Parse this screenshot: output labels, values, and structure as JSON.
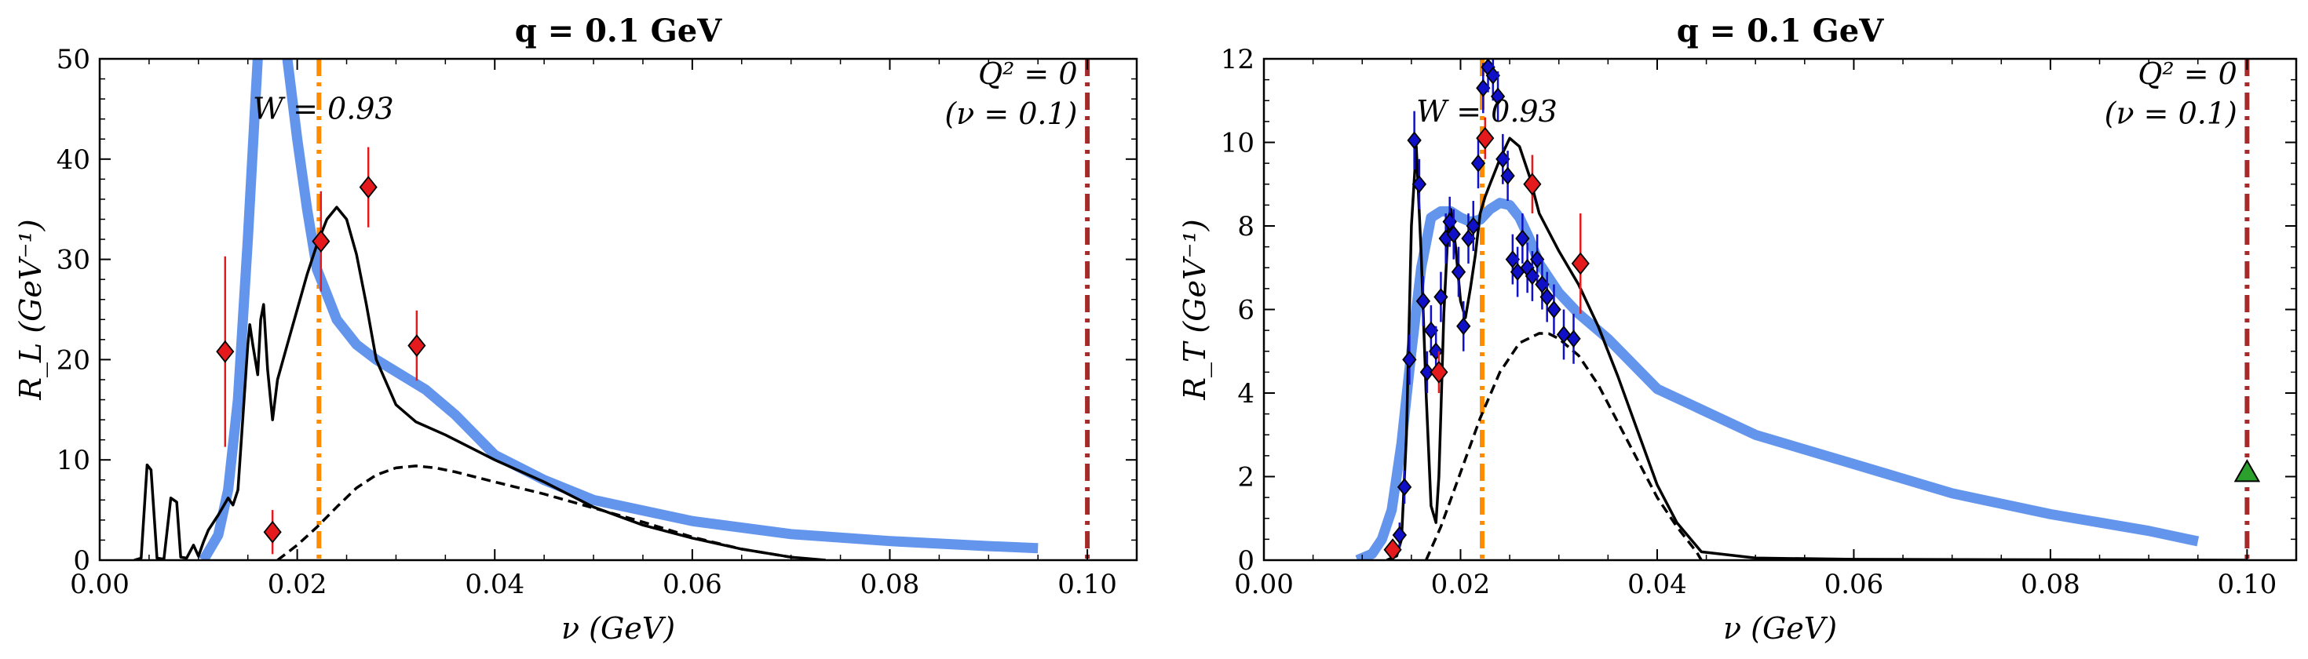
{
  "chart_data": [
    {
      "type": "line",
      "title": "q = 0.1 GeV",
      "xlabel": "ν (GeV)",
      "ylabel": "R_L (GeV⁻¹)",
      "xlim": [
        0.0,
        0.105
      ],
      "ylim": [
        0,
        50
      ],
      "xticks": [
        "0.00",
        "0.02",
        "0.04",
        "0.06",
        "0.08",
        "0.10"
      ],
      "xtick_values": [
        0.0,
        0.02,
        0.04,
        0.06,
        0.08,
        0.1
      ],
      "yticks": [
        "0",
        "10",
        "20",
        "30",
        "40",
        "50"
      ],
      "ytick_values": [
        0,
        10,
        20,
        30,
        40,
        50
      ],
      "annotations": [
        {
          "text": "W = 0.93",
          "x": 0.0155,
          "y": 44
        },
        {
          "text": "Q² = 0",
          "x": 0.099,
          "y": 47.5
        },
        {
          "text": "(ν = 0.1)",
          "x": 0.099,
          "y": 43.5
        }
      ],
      "vlines": [
        {
          "x": 0.0222,
          "color": "#ff8c00",
          "style": "dashdot"
        },
        {
          "x": 0.1,
          "color": "#a52a2a",
          "style": "dashdot"
        }
      ],
      "series": [
        {
          "style": "solid",
          "color": "#6495ed",
          "x": [
            0.0105,
            0.012,
            0.013,
            0.014,
            0.015,
            0.016,
            0.017,
            0.0185,
            0.019,
            0.02,
            0.021,
            0.022,
            0.023,
            0.024,
            0.026,
            0.028,
            0.03,
            0.033,
            0.036,
            0.04,
            0.045,
            0.05,
            0.06,
            0.07,
            0.08,
            0.09,
            0.095
          ],
          "y": [
            0,
            2.5,
            7,
            16,
            32,
            50,
            62,
            60,
            50,
            42,
            35,
            29,
            26.5,
            24,
            21.5,
            20,
            18.8,
            17,
            14.5,
            10.5,
            8,
            6,
            3.9,
            2.6,
            1.9,
            1.4,
            1.2
          ]
        },
        {
          "style": "solid",
          "color": "#000000",
          "x": [
            0.0035,
            0.0042,
            0.0048,
            0.0052,
            0.0058,
            0.0065,
            0.0072,
            0.0078,
            0.0082,
            0.0088,
            0.0095,
            0.01,
            0.0105,
            0.011,
            0.012,
            0.013,
            0.0135,
            0.014,
            0.015,
            0.0152,
            0.0155,
            0.016,
            0.0163,
            0.0166,
            0.017,
            0.0175,
            0.018,
            0.019,
            0.02,
            0.021,
            0.022,
            0.023,
            0.024,
            0.025,
            0.026,
            0.027,
            0.028,
            0.03,
            0.032,
            0.035,
            0.038,
            0.04,
            0.045,
            0.05,
            0.055,
            0.06,
            0.065,
            0.07,
            0.0735
          ],
          "y": [
            0,
            0.2,
            9.5,
            9,
            0.2,
            0.1,
            6.2,
            5.8,
            0.3,
            0.2,
            1.5,
            0.4,
            1.8,
            3,
            4.5,
            6.2,
            5.5,
            7,
            21.5,
            23.5,
            21.5,
            18.5,
            24,
            25.5,
            19,
            14,
            18,
            21.5,
            25,
            28.5,
            31.5,
            34,
            35.2,
            34,
            30.5,
            25.5,
            20,
            15.5,
            13.8,
            12.5,
            11,
            10,
            7.8,
            5.3,
            3.5,
            2.2,
            1.1,
            0.3,
            0
          ]
        },
        {
          "style": "dashed",
          "color": "#000000",
          "x": [
            0.018,
            0.02,
            0.022,
            0.024,
            0.026,
            0.028,
            0.03,
            0.032,
            0.034,
            0.036,
            0.04,
            0.045,
            0.05,
            0.055,
            0.06,
            0.065,
            0.07,
            0.072
          ],
          "y": [
            0,
            1.5,
            3.3,
            5.3,
            7.2,
            8.5,
            9.2,
            9.4,
            9.2,
            8.8,
            7.8,
            6.6,
            5.2,
            3.8,
            2.3,
            1.1,
            0.3,
            0
          ]
        }
      ],
      "data_points": [
        {
          "x": 0.0127,
          "y": 20.8,
          "err": 9.5,
          "color": "#e41a1c",
          "marker": "diamond"
        },
        {
          "x": 0.0175,
          "y": 2.8,
          "err": 2.2,
          "color": "#e41a1c",
          "marker": "diamond"
        },
        {
          "x": 0.0224,
          "y": 31.8,
          "err": 5.0,
          "color": "#e41a1c",
          "marker": "diamond"
        },
        {
          "x": 0.0272,
          "y": 37.2,
          "err": 4.0,
          "color": "#e41a1c",
          "marker": "diamond"
        },
        {
          "x": 0.0321,
          "y": 21.4,
          "err": 3.5,
          "color": "#e41a1c",
          "marker": "diamond"
        }
      ]
    },
    {
      "type": "line",
      "title": "q = 0.1 GeV",
      "xlabel": "ν (GeV)",
      "ylabel": "R_T (GeV⁻¹)",
      "xlim": [
        0.0,
        0.105
      ],
      "ylim": [
        0,
        12
      ],
      "xticks": [
        "0.00",
        "0.02",
        "0.04",
        "0.06",
        "0.08",
        "0.10"
      ],
      "xtick_values": [
        0.0,
        0.02,
        0.04,
        0.06,
        0.08,
        0.1
      ],
      "yticks": [
        "0",
        "2",
        "4",
        "6",
        "8",
        "10",
        "12"
      ],
      "ytick_values": [
        0,
        2,
        4,
        6,
        8,
        10,
        12
      ],
      "annotations": [
        {
          "text": "W = 0.93",
          "x": 0.0155,
          "y": 10.5
        },
        {
          "text": "Q² = 0",
          "x": 0.099,
          "y": 11.4
        },
        {
          "text": "(ν = 0.1)",
          "x": 0.099,
          "y": 10.45
        }
      ],
      "vlines": [
        {
          "x": 0.0222,
          "color": "#ff8c00",
          "style": "dashdot"
        },
        {
          "x": 0.1,
          "color": "#a52a2a",
          "style": "dashdot"
        }
      ],
      "series": [
        {
          "style": "solid",
          "color": "#6495ed",
          "x": [
            0.0095,
            0.011,
            0.012,
            0.013,
            0.014,
            0.015,
            0.016,
            0.017,
            0.018,
            0.019,
            0.02,
            0.021,
            0.022,
            0.023,
            0.024,
            0.025,
            0.026,
            0.027,
            0.028,
            0.03,
            0.032,
            0.035,
            0.04,
            0.05,
            0.06,
            0.07,
            0.08,
            0.09,
            0.095
          ],
          "y": [
            0,
            0.15,
            0.5,
            1.2,
            2.8,
            5.0,
            7.0,
            8.2,
            8.35,
            8.35,
            8.2,
            8.1,
            8.15,
            8.4,
            8.55,
            8.5,
            8.2,
            7.7,
            7.1,
            6.4,
            5.9,
            5.3,
            4.1,
            3.0,
            2.3,
            1.6,
            1.1,
            0.7,
            0.45
          ]
        },
        {
          "style": "solid",
          "color": "#000000",
          "x": [
            0.0125,
            0.0135,
            0.014,
            0.0145,
            0.015,
            0.0155,
            0.016,
            0.0165,
            0.017,
            0.0175,
            0.0178,
            0.018,
            0.0183,
            0.0188,
            0.019,
            0.0195,
            0.02,
            0.0205,
            0.021,
            0.0215,
            0.022,
            0.0225,
            0.023,
            0.024,
            0.025,
            0.026,
            0.027,
            0.028,
            0.03,
            0.032,
            0.034,
            0.036,
            0.038,
            0.04,
            0.042,
            0.0445,
            0.05,
            0.06,
            0.08,
            0.1
          ],
          "y": [
            0,
            0.1,
            0.5,
            3,
            8,
            9.9,
            7.3,
            4,
            1.3,
            0.9,
            2,
            3.5,
            5.9,
            8.2,
            8.4,
            7.5,
            6.2,
            5.8,
            6.5,
            7.3,
            8.3,
            8.7,
            9.0,
            9.6,
            10.1,
            9.9,
            9.2,
            8.3,
            7.4,
            6.6,
            5.6,
            4.4,
            3.1,
            1.8,
            0.9,
            0.2,
            0.05,
            0.02,
            0.01,
            0.0
          ]
        },
        {
          "style": "dashed",
          "color": "#000000",
          "x": [
            0.0165,
            0.018,
            0.02,
            0.022,
            0.024,
            0.026,
            0.028,
            0.029,
            0.03,
            0.032,
            0.034,
            0.036,
            0.038,
            0.04,
            0.042,
            0.044,
            0.0445
          ],
          "y": [
            0,
            0.8,
            2.1,
            3.4,
            4.5,
            5.2,
            5.43,
            5.42,
            5.3,
            4.9,
            4.2,
            3.3,
            2.4,
            1.5,
            0.8,
            0.2,
            0
          ]
        }
      ],
      "data_points": [
        {
          "x": 0.0138,
          "y": 0.6,
          "err": 0.3,
          "color": "#1010c8",
          "marker": "diamond"
        },
        {
          "x": 0.0143,
          "y": 1.75,
          "err": 0.4,
          "color": "#1010c8",
          "marker": "diamond"
        },
        {
          "x": 0.0148,
          "y": 4.8,
          "err": 0.6,
          "color": "#1010c8",
          "marker": "diamond"
        },
        {
          "x": 0.0153,
          "y": 10.05,
          "err": 0.7,
          "color": "#1010c8",
          "marker": "diamond"
        },
        {
          "x": 0.0158,
          "y": 9.0,
          "err": 0.6,
          "color": "#1010c8",
          "marker": "diamond"
        },
        {
          "x": 0.0162,
          "y": 6.2,
          "err": 0.6,
          "color": "#1010c8",
          "marker": "diamond"
        },
        {
          "x": 0.0166,
          "y": 4.5,
          "err": 0.5,
          "color": "#1010c8",
          "marker": "diamond"
        },
        {
          "x": 0.017,
          "y": 5.5,
          "err": 0.6,
          "color": "#1010c8",
          "marker": "diamond"
        },
        {
          "x": 0.0175,
          "y": 5.0,
          "err": 0.6,
          "color": "#1010c8",
          "marker": "diamond"
        },
        {
          "x": 0.018,
          "y": 6.3,
          "err": 0.6,
          "color": "#1010c8",
          "marker": "diamond"
        },
        {
          "x": 0.0185,
          "y": 7.7,
          "err": 0.6,
          "color": "#1010c8",
          "marker": "diamond"
        },
        {
          "x": 0.0189,
          "y": 8.1,
          "err": 0.6,
          "color": "#1010c8",
          "marker": "diamond"
        },
        {
          "x": 0.0193,
          "y": 7.8,
          "err": 0.6,
          "color": "#1010c8",
          "marker": "diamond"
        },
        {
          "x": 0.0198,
          "y": 6.9,
          "err": 0.6,
          "color": "#1010c8",
          "marker": "diamond"
        },
        {
          "x": 0.0203,
          "y": 5.6,
          "err": 0.6,
          "color": "#1010c8",
          "marker": "diamond"
        },
        {
          "x": 0.0208,
          "y": 7.7,
          "err": 0.6,
          "color": "#1010c8",
          "marker": "diamond"
        },
        {
          "x": 0.0213,
          "y": 8.0,
          "err": 0.6,
          "color": "#1010c8",
          "marker": "diamond"
        },
        {
          "x": 0.0218,
          "y": 9.5,
          "err": 0.6,
          "color": "#1010c8",
          "marker": "diamond"
        },
        {
          "x": 0.0223,
          "y": 11.3,
          "err": 0.6,
          "color": "#1010c8",
          "marker": "diamond"
        },
        {
          "x": 0.0228,
          "y": 11.8,
          "err": 0.6,
          "color": "#1010c8",
          "marker": "diamond"
        },
        {
          "x": 0.0233,
          "y": 11.6,
          "err": 0.6,
          "color": "#1010c8",
          "marker": "diamond"
        },
        {
          "x": 0.0238,
          "y": 11.1,
          "err": 0.6,
          "color": "#1010c8",
          "marker": "diamond"
        },
        {
          "x": 0.0243,
          "y": 9.6,
          "err": 0.6,
          "color": "#1010c8",
          "marker": "diamond"
        },
        {
          "x": 0.0248,
          "y": 9.2,
          "err": 0.6,
          "color": "#1010c8",
          "marker": "diamond"
        },
        {
          "x": 0.0253,
          "y": 7.2,
          "err": 0.6,
          "color": "#1010c8",
          "marker": "diamond"
        },
        {
          "x": 0.0258,
          "y": 6.9,
          "err": 0.6,
          "color": "#1010c8",
          "marker": "diamond"
        },
        {
          "x": 0.0263,
          "y": 7.7,
          "err": 0.6,
          "color": "#1010c8",
          "marker": "diamond"
        },
        {
          "x": 0.0268,
          "y": 7.0,
          "err": 0.6,
          "color": "#1010c8",
          "marker": "diamond"
        },
        {
          "x": 0.0273,
          "y": 6.8,
          "err": 0.6,
          "color": "#1010c8",
          "marker": "diamond"
        },
        {
          "x": 0.0278,
          "y": 7.2,
          "err": 0.6,
          "color": "#1010c8",
          "marker": "diamond"
        },
        {
          "x": 0.0283,
          "y": 6.6,
          "err": 0.6,
          "color": "#1010c8",
          "marker": "diamond"
        },
        {
          "x": 0.0288,
          "y": 6.3,
          "err": 0.6,
          "color": "#1010c8",
          "marker": "diamond"
        },
        {
          "x": 0.0295,
          "y": 6.0,
          "err": 0.6,
          "color": "#1010c8",
          "marker": "diamond"
        },
        {
          "x": 0.0305,
          "y": 5.4,
          "err": 0.6,
          "color": "#1010c8",
          "marker": "diamond"
        },
        {
          "x": 0.0315,
          "y": 5.3,
          "err": 0.6,
          "color": "#1010c8",
          "marker": "diamond"
        },
        {
          "x": 0.0131,
          "y": 0.25,
          "err": 0.2,
          "color": "#e41a1c",
          "marker": "diamond"
        },
        {
          "x": 0.0178,
          "y": 4.5,
          "err": 0.5,
          "color": "#e41a1c",
          "marker": "diamond"
        },
        {
          "x": 0.0225,
          "y": 10.1,
          "err": 0.5,
          "color": "#e41a1c",
          "marker": "diamond"
        },
        {
          "x": 0.0273,
          "y": 9.0,
          "err": 0.7,
          "color": "#e41a1c",
          "marker": "diamond"
        },
        {
          "x": 0.0322,
          "y": 7.1,
          "err": 1.2,
          "color": "#e41a1c",
          "marker": "diamond"
        },
        {
          "x": 0.1,
          "y": 2.1,
          "err": 0.0,
          "color": "#2ca02c",
          "marker": "triangle"
        }
      ]
    }
  ]
}
